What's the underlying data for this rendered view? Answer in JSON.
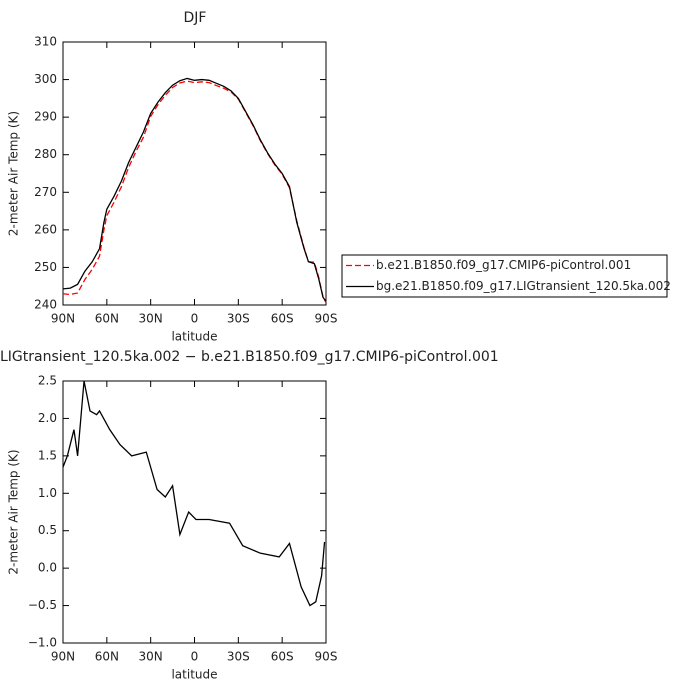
{
  "chart_data": [
    {
      "type": "line",
      "title": "DJF",
      "ylabel": "2-meter Air Temp (K)",
      "xlabel": "latitude",
      "x": [
        90,
        85,
        80,
        75,
        70,
        65,
        62,
        60,
        55,
        50,
        45,
        40,
        35,
        30,
        25,
        20,
        15,
        10,
        5,
        0,
        -5,
        -10,
        -15,
        -20,
        -25,
        -30,
        -35,
        -40,
        -45,
        -50,
        -55,
        -60,
        -65,
        -70,
        -75,
        -78,
        -82,
        -85,
        -88,
        -90
      ],
      "xlim": [
        90,
        -90
      ],
      "xticks": [
        {
          "value": 90,
          "label": "90N"
        },
        {
          "value": 60,
          "label": "60N"
        },
        {
          "value": 30,
          "label": "30N"
        },
        0,
        {
          "value": -30,
          "label": "30S"
        },
        {
          "value": -60,
          "label": "60S"
        },
        {
          "value": -90,
          "label": "90S"
        }
      ],
      "ylim": [
        240,
        310
      ],
      "yticks": [
        240,
        250,
        260,
        270,
        280,
        290,
        300,
        310
      ],
      "legend": "right",
      "series": [
        {
          "name": "b.e21.B1850.f09_g17.CMIP6-piControl.001",
          "color": "#ff0000",
          "linestyle": "dashed",
          "values": [
            243,
            242.8,
            243.2,
            246.8,
            249.5,
            253,
            260,
            263.8,
            267.4,
            271.5,
            276.7,
            280.9,
            284.6,
            290.2,
            293.3,
            295.8,
            297.9,
            299.1,
            299.6,
            299.2,
            299.4,
            299.2,
            298.4,
            297.7,
            296.7,
            294.8,
            291.3,
            287.8,
            283.8,
            280.3,
            277.3,
            274.8,
            271.2,
            262.4,
            255.2,
            251.5,
            251.4,
            247.4,
            242,
            240.7
          ]
        },
        {
          "name": "bg.e21.B1850.f09_g17.LIGtransient_120.5ka.002",
          "color": "#000000",
          "linestyle": "solid",
          "values": [
            244.3,
            244.5,
            245.5,
            249,
            251.5,
            255,
            262,
            265.5,
            269,
            273,
            278,
            282,
            286,
            291,
            294,
            296.5,
            298.5,
            299.7,
            300.3,
            299.8,
            300,
            299.8,
            299,
            298.2,
            297,
            295,
            291.5,
            288,
            284,
            280.5,
            277.5,
            275,
            271.5,
            262,
            255,
            251.5,
            251,
            247,
            242,
            241
          ]
        }
      ]
    },
    {
      "type": "line",
      "title": "LIGtransient_120.5ka.002 − b.e21.B1850.f09_g17.CMIP6-piControl.001",
      "ylabel": "2-meter Air Temp (K)",
      "xlabel": "latitude",
      "x": [
        90,
        87,
        82.5,
        80,
        75.6,
        71.5,
        67,
        65,
        58,
        51,
        43,
        33,
        25.6,
        20,
        15,
        10,
        4,
        -1,
        -10,
        -24,
        -33,
        -45,
        -58,
        -65,
        -73,
        -79,
        -83,
        -87,
        -89
      ],
      "xlim": [
        90,
        -90
      ],
      "xticks": [
        {
          "value": 90,
          "label": "90N"
        },
        {
          "value": 60,
          "label": "60N"
        },
        {
          "value": 30,
          "label": "30N"
        },
        0,
        {
          "value": -30,
          "label": "30S"
        },
        {
          "value": -60,
          "label": "60S"
        },
        {
          "value": -90,
          "label": "90S"
        }
      ],
      "ylim": [
        -1,
        2.5
      ],
      "yticks": [
        {
          "value": -1,
          "label": "−1.0"
        },
        {
          "value": -0.5,
          "label": "−0.5"
        },
        {
          "value": 0,
          "label": "0.0"
        },
        0.5,
        {
          "value": 1,
          "label": "1.0"
        },
        1.5,
        {
          "value": 2,
          "label": "2.0"
        },
        2.5
      ],
      "color": "#000000",
      "values": [
        1.35,
        1.5,
        1.85,
        1.5,
        2.5,
        2.1,
        2.05,
        2.1,
        1.85,
        1.65,
        1.5,
        1.55,
        1.05,
        0.95,
        1.1,
        0.45,
        0.75,
        0.65,
        0.65,
        0.6,
        0.3,
        0.2,
        0.15,
        0.33,
        -0.25,
        -0.5,
        -0.45,
        -0.1,
        0.35
      ]
    }
  ]
}
